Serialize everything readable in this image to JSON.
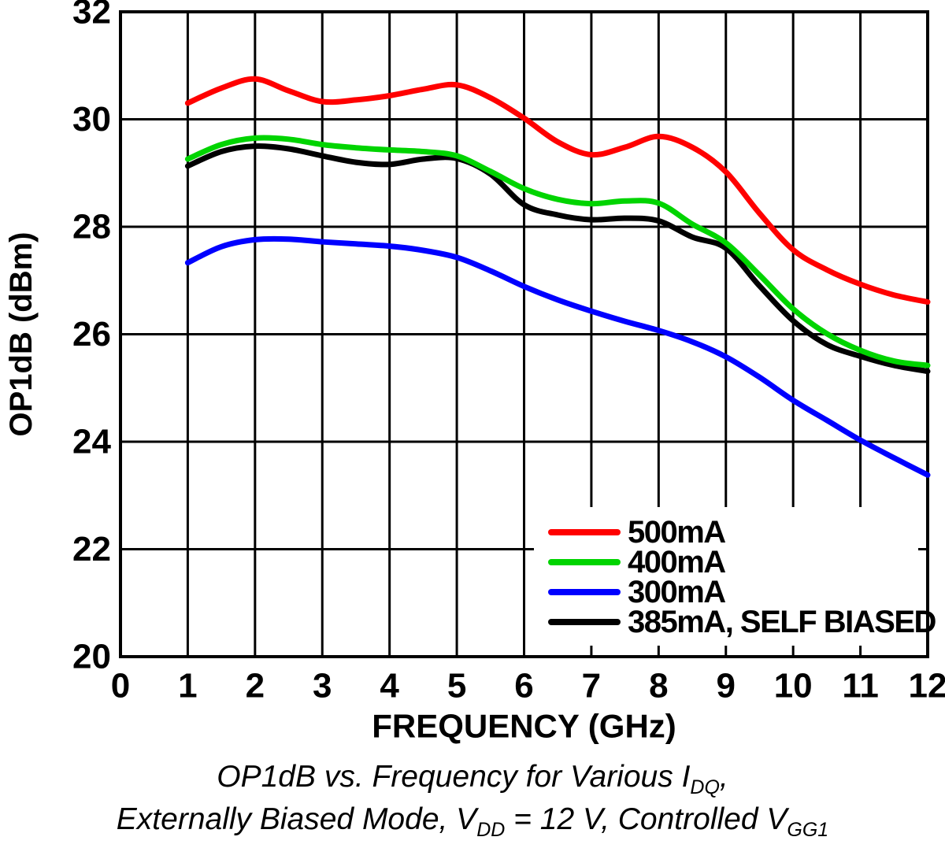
{
  "chart_data": {
    "type": "line",
    "title": "",
    "xlabel": "FREQUENCY (GHz)",
    "ylabel": "OP1dB (dBm)",
    "xlim": [
      0,
      12
    ],
    "ylim": [
      20,
      32
    ],
    "xticks": [
      0,
      1,
      2,
      3,
      4,
      5,
      6,
      7,
      8,
      9,
      10,
      11,
      12
    ],
    "yticks": [
      20,
      22,
      24,
      26,
      28,
      30,
      32
    ],
    "grid": true,
    "axis_color": "#000000",
    "legend_position": "lower right",
    "x": [
      1,
      1.5,
      2,
      2.5,
      3,
      3.5,
      4,
      4.5,
      5,
      5.5,
      6,
      6.5,
      7,
      7.5,
      8,
      8.5,
      9,
      9.5,
      10,
      10.5,
      11,
      11.5,
      12
    ],
    "series": [
      {
        "name": "500mA",
        "color": "#ff0000",
        "values": [
          30.3,
          30.58,
          30.75,
          30.53,
          30.33,
          30.36,
          30.44,
          30.56,
          30.64,
          30.4,
          30.02,
          29.58,
          29.34,
          29.48,
          29.68,
          29.48,
          29.02,
          28.25,
          27.57,
          27.2,
          26.93,
          26.73,
          26.6
        ]
      },
      {
        "name": "400mA",
        "color": "#00d400",
        "values": [
          29.26,
          29.53,
          29.65,
          29.63,
          29.53,
          29.47,
          29.43,
          29.4,
          29.32,
          29.03,
          28.71,
          28.51,
          28.43,
          28.48,
          28.44,
          28.05,
          27.7,
          27.1,
          26.47,
          26.01,
          25.7,
          25.5,
          25.42
        ]
      },
      {
        "name": "300mA",
        "color": "#0000ff",
        "values": [
          27.33,
          27.63,
          27.76,
          27.77,
          27.72,
          27.68,
          27.64,
          27.56,
          27.43,
          27.18,
          26.89,
          26.64,
          26.43,
          26.24,
          26.07,
          25.86,
          25.58,
          25.2,
          24.77,
          24.4,
          24.03,
          23.7,
          23.38
        ]
      },
      {
        "name": "385mA, SELF BIASED",
        "color": "#000000",
        "values": [
          29.13,
          29.4,
          29.5,
          29.45,
          29.32,
          29.2,
          29.16,
          29.26,
          29.27,
          28.98,
          28.41,
          28.22,
          28.13,
          28.16,
          28.11,
          27.81,
          27.6,
          26.9,
          26.25,
          25.81,
          25.59,
          25.42,
          25.31
        ]
      }
    ]
  },
  "caption": {
    "line1_pre": "OP1dB vs. Frequency for Various I",
    "line1_sub": "DQ",
    "line1_post": ",",
    "line2_pre": "Externally Biased Mode, V",
    "line2_sub1": "DD",
    "line2_mid": " = 12 V, Controlled V",
    "line2_sub2": "GG1"
  }
}
